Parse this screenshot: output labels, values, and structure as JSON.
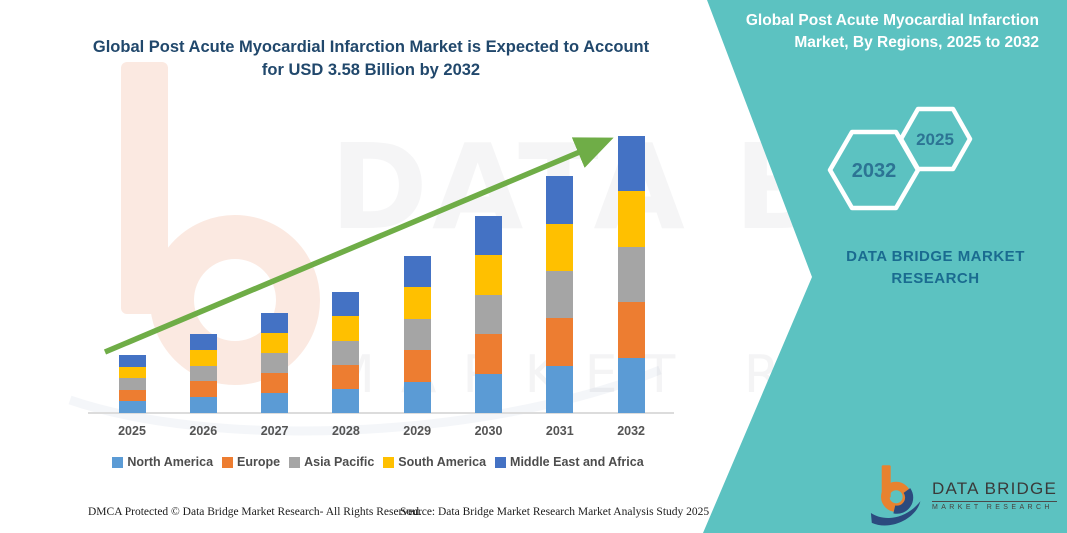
{
  "header": {
    "title": "Global Post Acute Myocardial Infarction Market is Expected to Account for USD 3.58 Billion by 2032"
  },
  "side_panel": {
    "title": "Global Post Acute Myocardial Infarction Market, By Regions, 2025 to 2032",
    "hexagon_years": {
      "back": "2032",
      "front": "2025"
    },
    "brand": "DATA BRIDGE MARKET RESEARCH",
    "colors": {
      "panel_teal": "#5CC2C1",
      "hexagon_stroke": "#FFFFFF",
      "year_text": "#2C7494",
      "brand_text": "#1A6B90"
    }
  },
  "chart_data": {
    "type": "bar",
    "stacked": true,
    "title": "Global Post Acute Myocardial Infarction Market is Expected to Account for USD 3.58 Billion by 2032",
    "unit": "USD Billion",
    "categories": [
      "2025",
      "2026",
      "2027",
      "2028",
      "2029",
      "2030",
      "2031",
      "2032"
    ],
    "series": [
      {
        "name": "North America",
        "color": "#5B9BD5",
        "values": [
          0.15,
          0.2,
          0.26,
          0.31,
          0.41,
          0.51,
          0.61,
          0.72
        ]
      },
      {
        "name": "Europe",
        "color": "#ED7D31",
        "values": [
          0.15,
          0.2,
          0.26,
          0.31,
          0.41,
          0.51,
          0.61,
          0.72
        ]
      },
      {
        "name": "Asia Pacific",
        "color": "#A5A5A5",
        "values": [
          0.15,
          0.2,
          0.26,
          0.31,
          0.41,
          0.51,
          0.61,
          0.72
        ]
      },
      {
        "name": "South America",
        "color": "#FFC000",
        "values": [
          0.15,
          0.2,
          0.26,
          0.31,
          0.41,
          0.51,
          0.61,
          0.72
        ]
      },
      {
        "name": "Middle East and Africa",
        "color": "#4472C4",
        "values": [
          0.15,
          0.2,
          0.26,
          0.31,
          0.41,
          0.51,
          0.61,
          0.72
        ]
      }
    ],
    "totals": [
      0.75,
      1.02,
      1.29,
      1.56,
      2.03,
      2.55,
      3.06,
      3.58
    ],
    "ylim": [
      0,
      3.58
    ],
    "gridlines": false,
    "legend_position": "bottom",
    "trend_arrow": {
      "present": true,
      "color": "#6FAD47"
    },
    "highlight_value": "USD 3.58 Billion by 2032"
  },
  "footer": {
    "dmca": "DMCA Protected © Data Bridge Market Research-  All Rights Reserved.",
    "source": "Source: Data Bridge Market Research  Market Analysis Study 2025"
  },
  "logo": {
    "name": "DATA BRIDGE",
    "tagline": "MARKET RESEARCH"
  },
  "watermark": {
    "line1": "DATA BRIDGE",
    "line2": "MARKET RESEARCH"
  }
}
